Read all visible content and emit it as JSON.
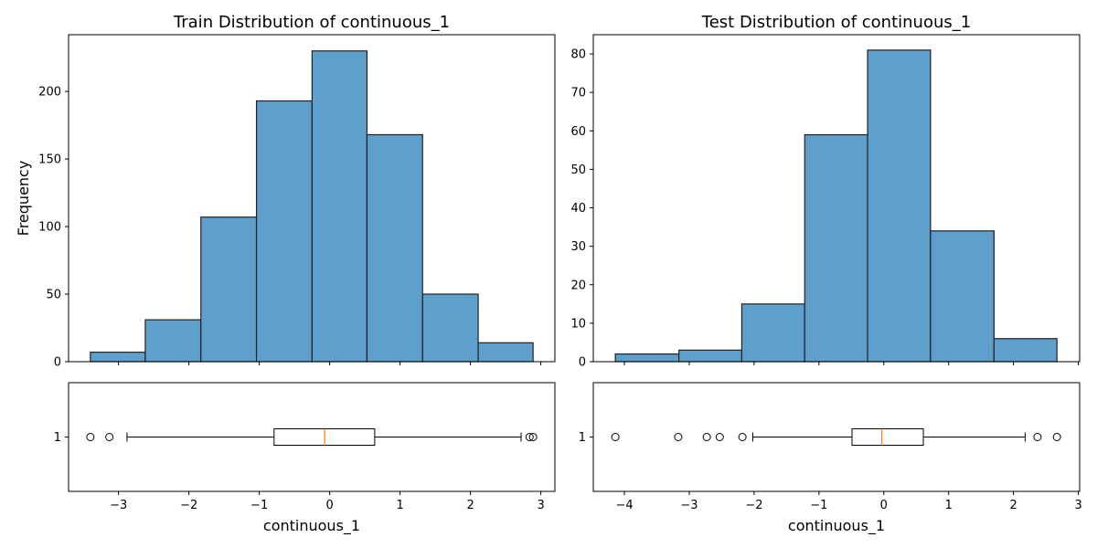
{
  "chart_data": [
    {
      "type": "histogram",
      "title": "Train Distribution of continuous_1",
      "xlabel": "",
      "ylabel": "Frequency",
      "bins": [
        {
          "x0": -3.4,
          "x1": -2.62,
          "count": 7
        },
        {
          "x0": -2.62,
          "x1": -1.83,
          "count": 31
        },
        {
          "x0": -1.83,
          "x1": -1.04,
          "count": 107
        },
        {
          "x0": -1.04,
          "x1": -0.25,
          "count": 193
        },
        {
          "x0": -0.25,
          "x1": 0.53,
          "count": 230
        },
        {
          "x0": 0.53,
          "x1": 1.32,
          "count": 168
        },
        {
          "x0": 1.32,
          "x1": 2.11,
          "count": 50
        },
        {
          "x0": 2.11,
          "x1": 2.89,
          "count": 14
        }
      ],
      "ylim": [
        0,
        242
      ],
      "yticks": [
        0,
        50,
        100,
        150,
        200
      ],
      "xlim": [
        -3.71,
        3.2
      ],
      "bar_color": "#5f9fcc",
      "edge_color": "#222222"
    },
    {
      "type": "histogram",
      "title": "Test Distribution of continuous_1",
      "xlabel": "",
      "ylabel": "",
      "bins": [
        {
          "x0": -4.14,
          "x1": -3.16,
          "count": 2
        },
        {
          "x0": -3.16,
          "x1": -2.19,
          "count": 3
        },
        {
          "x0": -2.19,
          "x1": -1.22,
          "count": 15
        },
        {
          "x0": -1.22,
          "x1": -0.25,
          "count": 59
        },
        {
          "x0": -0.25,
          "x1": 0.72,
          "count": 81
        },
        {
          "x0": 0.72,
          "x1": 1.7,
          "count": 34
        },
        {
          "x0": 1.7,
          "x1": 2.67,
          "count": 6
        }
      ],
      "ylim": [
        0,
        85
      ],
      "yticks": [
        0,
        10,
        20,
        30,
        40,
        50,
        60,
        70,
        80
      ],
      "xlim": [
        -4.48,
        3.02
      ],
      "bar_color": "#5f9fcc",
      "edge_color": "#222222"
    },
    {
      "type": "boxplot",
      "title": "",
      "xlabel": "continuous_1",
      "ylabel": "",
      "category": "1",
      "q1": -0.79,
      "median": -0.07,
      "q3": 0.64,
      "whisker_low": -2.88,
      "whisker_high": 2.72,
      "outliers": [
        -3.4,
        -3.13,
        2.84,
        2.89
      ],
      "xlim": [
        -3.71,
        3.2
      ],
      "xticks": [
        -3,
        -2,
        -1,
        0,
        1,
        2,
        3
      ],
      "median_color": "#ff7f0e"
    },
    {
      "type": "boxplot",
      "title": "",
      "xlabel": "continuous_1",
      "ylabel": "",
      "category": "1",
      "q1": -0.49,
      "median": -0.03,
      "q3": 0.61,
      "whisker_low": -2.02,
      "whisker_high": 2.18,
      "outliers": [
        -4.14,
        -3.17,
        -2.73,
        -2.53,
        -2.18,
        2.37,
        2.67
      ],
      "xlim": [
        -4.48,
        3.02
      ],
      "xticks": [
        -4,
        -3,
        -2,
        -1,
        0,
        1,
        2,
        3
      ],
      "median_color": "#ff7f0e"
    }
  ]
}
